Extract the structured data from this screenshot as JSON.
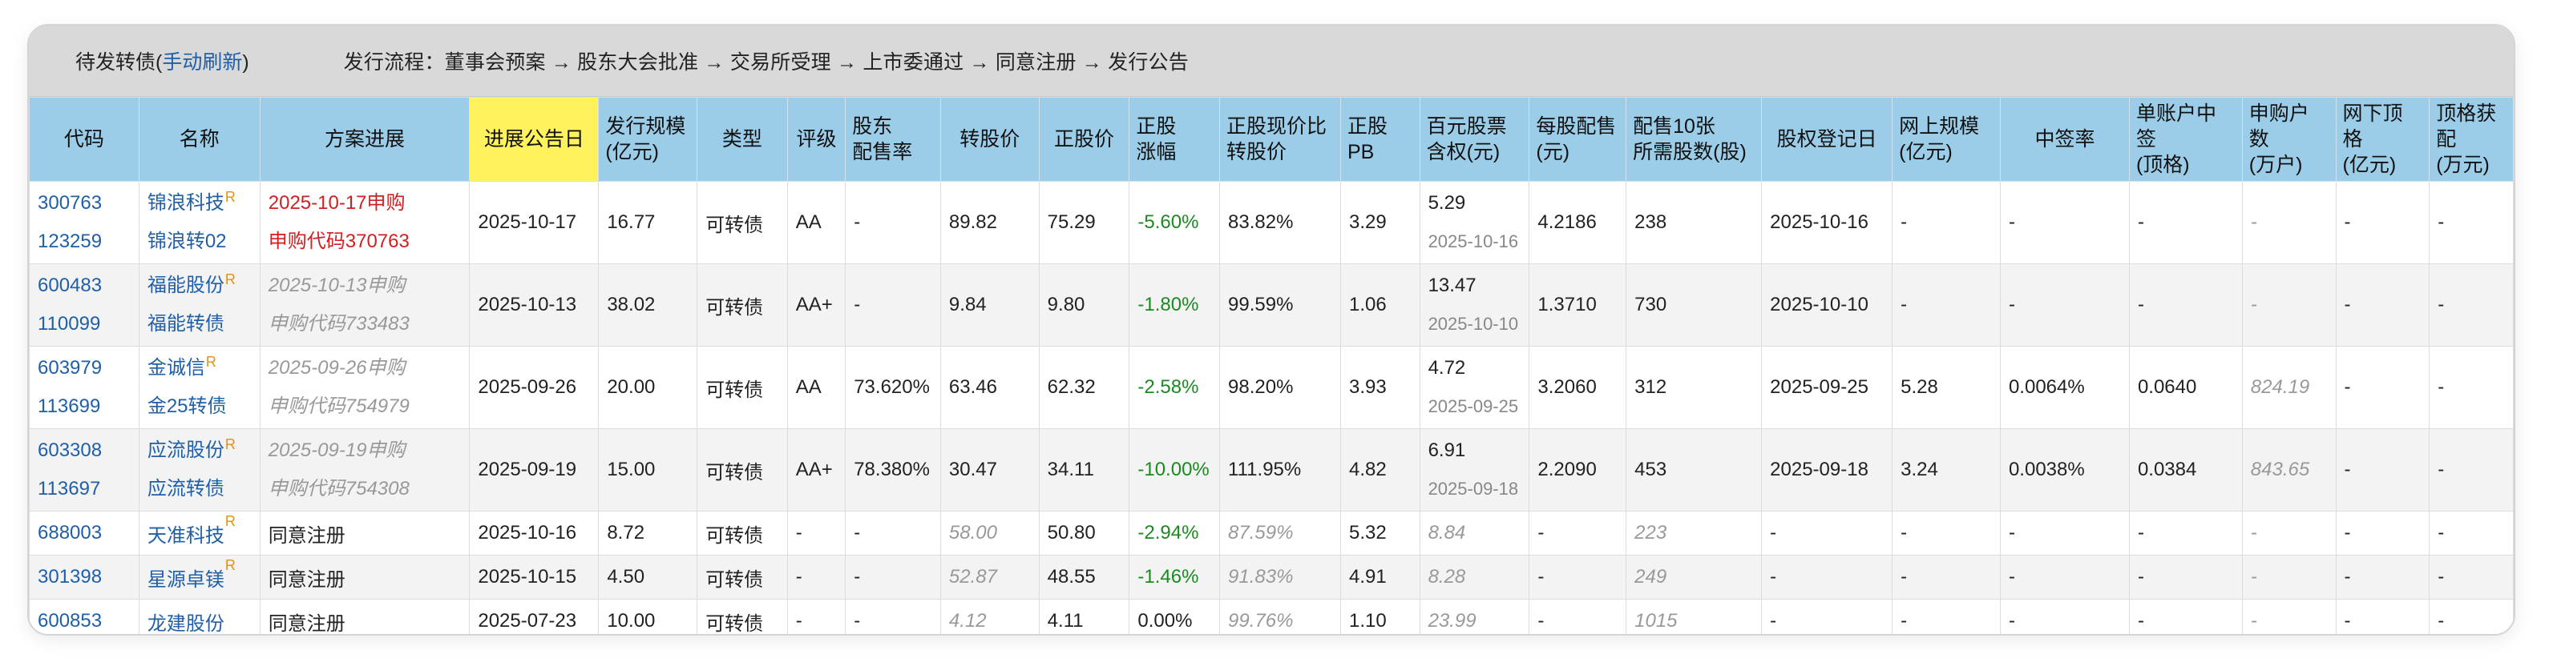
{
  "header": {
    "title_prefix": "待发转债(",
    "refresh_label": "手动刷新",
    "title_suffix": ")",
    "flow": "发行流程：董事会预案 → 股东大会批准 → 交易所受理 → 上市委通过 → 同意注册 → 发行公告"
  },
  "columns": [
    {
      "l1": "代码",
      "l2": ""
    },
    {
      "l1": "名称",
      "l2": ""
    },
    {
      "l1": "方案进展",
      "l2": ""
    },
    {
      "l1": "进展公告日",
      "l2": ""
    },
    {
      "l1": "发行规模",
      "l2": "(亿元)"
    },
    {
      "l1": "类型",
      "l2": ""
    },
    {
      "l1": "评级",
      "l2": ""
    },
    {
      "l1": "股东",
      "l2": "配售率"
    },
    {
      "l1": "转股价",
      "l2": ""
    },
    {
      "l1": "正股价",
      "l2": ""
    },
    {
      "l1": "正股",
      "l2": "涨幅"
    },
    {
      "l1": "正股现价比",
      "l2": "转股价"
    },
    {
      "l1": "正股PB",
      "l2": ""
    },
    {
      "l1": "百元股票",
      "l2": "含权(元)"
    },
    {
      "l1": "每股配售",
      "l2": "(元)"
    },
    {
      "l1": "配售10张",
      "l2": "所需股数(股)"
    },
    {
      "l1": "股权登记日",
      "l2": ""
    },
    {
      "l1": "网上规模",
      "l2": "(亿元)"
    },
    {
      "l1": "中签率",
      "l2": ""
    },
    {
      "l1": "单账户中签",
      "l2": "(顶格)"
    },
    {
      "l1": "申购户数",
      "l2": "(万户)"
    },
    {
      "l1": "网下顶格",
      "l2": "(亿元)"
    },
    {
      "l1": "顶格获配",
      "l2": "(万元)"
    }
  ],
  "rows": [
    {
      "stock_code": "300763",
      "bond_code": "123259",
      "stock_name": "锦浪科技",
      "r": "R",
      "bond_name": "锦浪转02",
      "progress1": "2025-10-17申购",
      "progress2": "申购代码370763",
      "announce_date": "2025-10-17",
      "size": "16.77",
      "type": "可转债",
      "rating": "AA",
      "placement_rate": "-",
      "conv_price": "89.82",
      "stock_price": "75.29",
      "stock_change": "-5.60%",
      "ratio": "83.82%",
      "pb": "3.29",
      "rights": "5.29",
      "rights_date": "2025-10-16",
      "per_share": "4.2186",
      "shares_needed": "238",
      "record_date": "2025-10-16",
      "online_size": "-",
      "win_rate": "-",
      "single_win": "-",
      "applicants": "-",
      "offline_max": "-",
      "max_alloc": "-"
    },
    {
      "stock_code": "600483",
      "bond_code": "110099",
      "stock_name": "福能股份",
      "r": "R",
      "bond_name": "福能转债",
      "progress1": "2025-10-13申购",
      "progress2": "申购代码733483",
      "announce_date": "2025-10-13",
      "size": "38.02",
      "type": "可转债",
      "rating": "AA+",
      "placement_rate": "-",
      "conv_price": "9.84",
      "stock_price": "9.80",
      "stock_change": "-1.80%",
      "ratio": "99.59%",
      "pb": "1.06",
      "rights": "13.47",
      "rights_date": "2025-10-10",
      "per_share": "1.3710",
      "shares_needed": "730",
      "record_date": "2025-10-10",
      "online_size": "-",
      "win_rate": "-",
      "single_win": "-",
      "applicants": "-",
      "offline_max": "-",
      "max_alloc": "-"
    },
    {
      "stock_code": "603979",
      "bond_code": "113699",
      "stock_name": "金诚信",
      "r": "R",
      "bond_name": "金25转债",
      "progress1": "2025-09-26申购",
      "progress2": "申购代码754979",
      "announce_date": "2025-09-26",
      "size": "20.00",
      "type": "可转债",
      "rating": "AA",
      "placement_rate": "73.620%",
      "conv_price": "63.46",
      "stock_price": "62.32",
      "stock_change": "-2.58%",
      "ratio": "98.20%",
      "pb": "3.93",
      "rights": "4.72",
      "rights_date": "2025-09-25",
      "per_share": "3.2060",
      "shares_needed": "312",
      "record_date": "2025-09-25",
      "online_size": "5.28",
      "win_rate": "0.0064%",
      "single_win": "0.0640",
      "applicants": "824.19",
      "offline_max": "-",
      "max_alloc": "-"
    },
    {
      "stock_code": "603308",
      "bond_code": "113697",
      "stock_name": "应流股份",
      "r": "R",
      "bond_name": "应流转债",
      "progress1": "2025-09-19申购",
      "progress2": "申购代码754308",
      "announce_date": "2025-09-19",
      "size": "15.00",
      "type": "可转债",
      "rating": "AA+",
      "placement_rate": "78.380%",
      "conv_price": "30.47",
      "stock_price": "34.11",
      "stock_change": "-10.00%",
      "ratio": "111.95%",
      "pb": "4.82",
      "rights": "6.91",
      "rights_date": "2025-09-18",
      "per_share": "2.2090",
      "shares_needed": "453",
      "record_date": "2025-09-18",
      "online_size": "3.24",
      "win_rate": "0.0038%",
      "single_win": "0.0384",
      "applicants": "843.65",
      "offline_max": "-",
      "max_alloc": "-"
    },
    {
      "stock_code": "688003",
      "stock_name": "天准科技",
      "r": "R",
      "progress": "同意注册",
      "announce_date": "2025-10-16",
      "size": "8.72",
      "type": "可转债",
      "rating": "-",
      "placement_rate": "-",
      "conv_price": "58.00",
      "stock_price": "50.80",
      "stock_change": "-2.94%",
      "ratio": "87.59%",
      "pb": "5.32",
      "rights": "8.84",
      "per_share": "-",
      "shares_needed": "223",
      "record_date": "-",
      "online_size": "-",
      "win_rate": "-",
      "single_win": "-",
      "applicants": "-",
      "offline_max": "-",
      "max_alloc": "-"
    },
    {
      "stock_code": "301398",
      "stock_name": "星源卓镁",
      "r": "R",
      "progress": "同意注册",
      "announce_date": "2025-10-15",
      "size": "4.50",
      "type": "可转债",
      "rating": "-",
      "placement_rate": "-",
      "conv_price": "52.87",
      "stock_price": "48.55",
      "stock_change": "-1.46%",
      "ratio": "91.83%",
      "pb": "4.91",
      "rights": "8.28",
      "per_share": "-",
      "shares_needed": "249",
      "record_date": "-",
      "online_size": "-",
      "win_rate": "-",
      "single_win": "-",
      "applicants": "-",
      "offline_max": "-",
      "max_alloc": "-"
    },
    {
      "stock_code": "600853",
      "stock_name": "龙建股份",
      "r": "",
      "progress": "同意注册",
      "announce_date": "2025-07-23",
      "size": "10.00",
      "type": "可转债",
      "rating": "-",
      "placement_rate": "-",
      "conv_price": "4.12",
      "stock_price": "4.11",
      "stock_change": "0.00%",
      "ratio": "99.76%",
      "pb": "1.10",
      "rights": "23.99",
      "per_share": "-",
      "shares_needed": "1015",
      "record_date": "-",
      "online_size": "-",
      "win_rate": "-",
      "single_win": "-",
      "applicants": "-",
      "offline_max": "-",
      "max_alloc": "-"
    }
  ],
  "colors": {
    "header_bg": "#9ccde8",
    "highlight_header": "#fff25c",
    "link": "#1f5fa8",
    "red": "#d21f1f",
    "green": "#1b8a20",
    "r_mark": "#e8900c"
  }
}
